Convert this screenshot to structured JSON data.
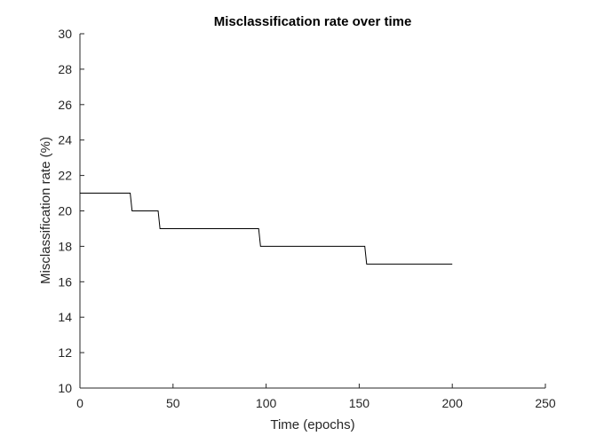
{
  "chart_data": {
    "type": "line",
    "title": "Misclassification rate over time",
    "xlabel": "Time (epochs)",
    "ylabel": "Misclassification rate (%)",
    "xlim": [
      0,
      250
    ],
    "ylim": [
      10,
      30
    ],
    "xticks": [
      0,
      50,
      100,
      150,
      200,
      250
    ],
    "yticks": [
      10,
      12,
      14,
      16,
      18,
      20,
      22,
      24,
      26,
      28,
      30
    ],
    "grid": false,
    "legend": "none",
    "line_color": "#000000",
    "axis_color": "#262626",
    "series": [
      {
        "x": [
          0,
          27,
          28,
          42,
          43,
          96,
          97,
          153,
          154,
          200
        ],
        "y": [
          21,
          21,
          20,
          20,
          19,
          19,
          18,
          18,
          17,
          17
        ]
      }
    ]
  }
}
